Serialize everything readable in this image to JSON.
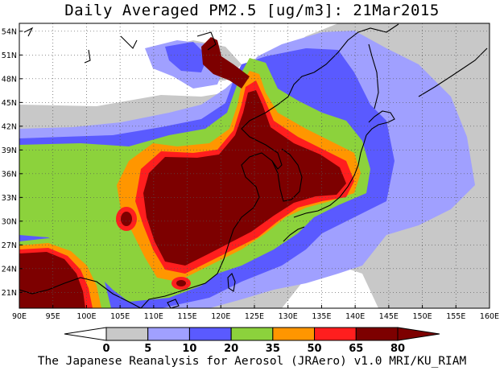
{
  "title": "Daily Averaged PM2.5 [ug/m3]: 21Mar2015",
  "credit": "The Japanese Reanalysis for Aerosol (JRAero) v1.0 MRI/KU_RIAM",
  "map": {
    "lon_range": [
      90,
      160
    ],
    "lat_range": [
      19,
      55
    ],
    "lon_ticks": [
      "90E",
      "95E",
      "100E",
      "105E",
      "110E",
      "115E",
      "120E",
      "125E",
      "130E",
      "135E",
      "140E",
      "145E",
      "150E",
      "155E",
      "160E"
    ],
    "lat_ticks": [
      "21N",
      "24N",
      "27N",
      "30N",
      "33N",
      "36N",
      "39N",
      "42N",
      "45N",
      "48N",
      "51N",
      "54N"
    ],
    "gridlines": true
  },
  "colorbar": {
    "levels": [
      "0",
      "5",
      "10",
      "20",
      "35",
      "50",
      "65",
      "80"
    ],
    "colors": [
      "#ffffff",
      "#c8c8c8",
      "#a0a0ff",
      "#5a5aff",
      "#8cd23c",
      "#ff9600",
      "#ff1e1e",
      "#7d0000"
    ],
    "under_color": "#ffffff",
    "over_color": "#7d0000"
  }
}
